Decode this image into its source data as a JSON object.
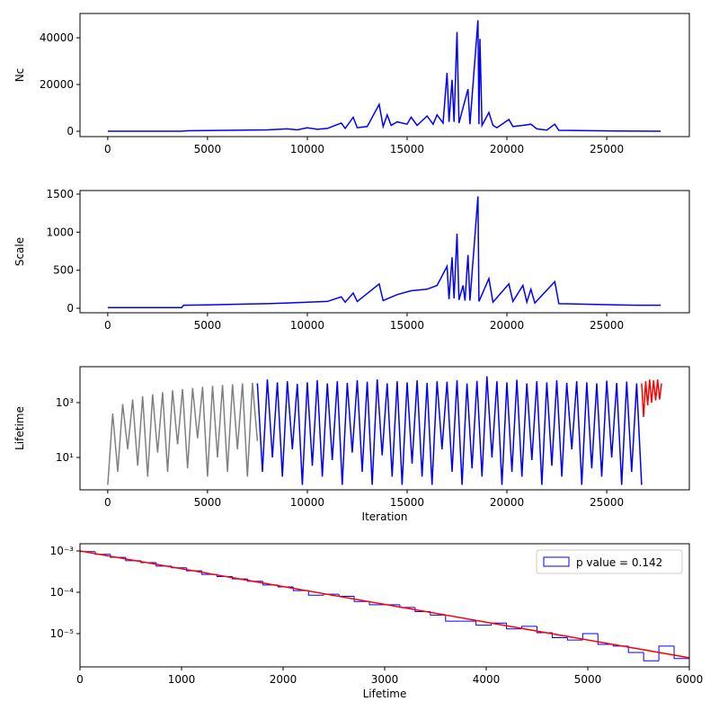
{
  "chart_data": [
    {
      "type": "line",
      "ylabel": "Nc",
      "xlim": [
        -1390,
        29140
      ],
      "ylim": [
        -2300,
        50400
      ],
      "xticks": [
        0,
        5000,
        10000,
        15000,
        20000,
        25000
      ],
      "yticks": [
        0,
        20000,
        40000
      ],
      "series": [
        {
          "color": "blue",
          "x": [
            0,
            1000,
            2000,
            3000,
            3700,
            4000,
            5000,
            6000,
            7000,
            8000,
            9000,
            9500,
            10000,
            10500,
            11000,
            11700,
            11900,
            12300,
            12500,
            13000,
            13600,
            13800,
            14000,
            14200,
            14500,
            15000,
            15200,
            15500,
            16000,
            16300,
            16500,
            16800,
            17000,
            17100,
            17250,
            17350,
            17500,
            17600,
            18050,
            18150,
            18550,
            18600,
            18650,
            18750,
            19100,
            19300,
            19500,
            20100,
            20300,
            20800,
            21200,
            21500,
            22000,
            22400,
            22600,
            23500,
            24500,
            25500,
            26500,
            27700
          ],
          "values": [
            0,
            0,
            0,
            0,
            0,
            200,
            300,
            400,
            500,
            600,
            1000,
            600,
            1500,
            800,
            1200,
            3500,
            1200,
            6000,
            1500,
            2000,
            11500,
            2000,
            7000,
            2500,
            4000,
            3000,
            6000,
            2500,
            6500,
            3000,
            7000,
            3500,
            25000,
            4000,
            22000,
            4000,
            42500,
            3500,
            18000,
            3000,
            47500,
            3000,
            39500,
            2500,
            8000,
            2500,
            1500,
            5000,
            2000,
            2500,
            3000,
            1000,
            500,
            3000,
            400,
            300,
            200,
            100,
            50,
            0
          ]
        }
      ]
    },
    {
      "type": "line",
      "ylabel": "Scale",
      "xlim": [
        -1390,
        29140
      ],
      "ylim": [
        -59,
        1547
      ],
      "xticks": [
        0,
        5000,
        10000,
        15000,
        20000,
        25000
      ],
      "yticks": [
        0,
        500,
        1000,
        1500
      ],
      "series": [
        {
          "color": "blue",
          "x": [
            0,
            1000,
            2000,
            3000,
            3700,
            3800,
            5000,
            6000,
            7000,
            8000,
            9000,
            10000,
            11000,
            11700,
            11900,
            12300,
            12500,
            13600,
            13800,
            14500,
            15200,
            16000,
            16500,
            17000,
            17100,
            17250,
            17350,
            17500,
            17600,
            17800,
            17900,
            18050,
            18150,
            18550,
            18600,
            19100,
            19300,
            20100,
            20300,
            20800,
            21000,
            21200,
            21400,
            22400,
            22600,
            23500,
            24500,
            25500,
            26500,
            27700
          ],
          "values": [
            10,
            10,
            10,
            10,
            10,
            40,
            45,
            50,
            55,
            60,
            70,
            80,
            90,
            150,
            80,
            200,
            90,
            320,
            100,
            180,
            230,
            250,
            300,
            550,
            120,
            670,
            130,
            980,
            110,
            300,
            100,
            700,
            100,
            1470,
            90,
            390,
            80,
            320,
            90,
            300,
            80,
            250,
            70,
            350,
            60,
            55,
            50,
            45,
            40,
            40
          ]
        }
      ]
    },
    {
      "type": "line",
      "yscale": "log",
      "ylabel": "Lifetime",
      "xlabel": "Iteration",
      "xlim": [
        -1390,
        29140
      ],
      "ylim": [
        0.66,
        20400
      ],
      "xticks": [
        0,
        5000,
        10000,
        15000,
        20000,
        25000
      ],
      "yticks": [
        {
          "value": 10,
          "label": "10¹"
        },
        {
          "value": 1000,
          "label": "10³"
        }
      ],
      "series": [
        {
          "color": "gray",
          "x": [
            0,
            250,
            500,
            750,
            1000,
            1250,
            1500,
            1750,
            2000,
            2250,
            2500,
            2750,
            3000,
            3250,
            3500,
            3750,
            4000,
            4250,
            4500,
            4750,
            5000,
            5250,
            5500,
            5750,
            6000,
            6250,
            6500,
            6750,
            7000,
            7250,
            7500
          ],
          "values": [
            1,
            400,
            3,
            900,
            20,
            1300,
            5,
            1700,
            2,
            2000,
            15,
            2400,
            3,
            2800,
            30,
            3100,
            4,
            3400,
            50,
            3800,
            2,
            4100,
            10,
            4400,
            3,
            4700,
            20,
            5000,
            2,
            5200,
            40
          ]
        },
        {
          "color": "blue",
          "x": [
            7500,
            7750,
            8000,
            8250,
            8500,
            8750,
            9000,
            9250,
            9500,
            9750,
            10000,
            10250,
            10500,
            10750,
            11000,
            11250,
            11500,
            11750,
            12000,
            12250,
            12500,
            12750,
            13000,
            13250,
            13500,
            13750,
            14000,
            14250,
            14500,
            14750,
            15000,
            15250,
            15500,
            15750,
            16000,
            16250,
            16500,
            16750,
            17000,
            17250,
            17500,
            17750,
            18000,
            18250,
            18500,
            18750,
            19000,
            19250,
            19500,
            19750,
            20000,
            20250,
            20500,
            20750,
            21000,
            21250,
            21500,
            21750,
            22000,
            22250,
            22500,
            22750,
            23000,
            23250,
            23500,
            23750,
            24000,
            24250,
            24500,
            24750,
            25000,
            25250,
            25500,
            25750,
            26000,
            26250,
            26500,
            26750
          ],
          "values": [
            5000,
            3,
            7000,
            10,
            5500,
            2,
            6000,
            20,
            4800,
            1,
            5500,
            5,
            6500,
            2,
            5000,
            8,
            6000,
            1,
            5200,
            15,
            6500,
            3,
            5800,
            1,
            7000,
            12,
            5000,
            2,
            6000,
            1,
            5500,
            6,
            6500,
            2,
            5200,
            1,
            6000,
            20,
            5800,
            3,
            6500,
            1,
            5000,
            4,
            6200,
            2,
            9000,
            10,
            6000,
            1,
            5500,
            3,
            6800,
            2,
            5000,
            8,
            6000,
            1,
            5500,
            5,
            6500,
            2,
            5200,
            20,
            6000,
            1,
            5500,
            4,
            5000,
            2,
            6300,
            10,
            5200,
            1,
            5800,
            3,
            5000,
            1
          ]
        },
        {
          "color": "red",
          "x": [
            26750,
            26850,
            26950,
            27050,
            27150,
            27250,
            27350,
            27450,
            27550,
            27650,
            27750
          ],
          "values": [
            5000,
            300,
            6000,
            800,
            7000,
            1000,
            6500,
            1200,
            7000,
            1300,
            5000
          ]
        }
      ]
    },
    {
      "type": "histogram",
      "yscale": "log",
      "xlabel": "Lifetime",
      "xlim": [
        0,
        6000
      ],
      "ylim": [
        1.57e-06,
        0.00149
      ],
      "xticks": [
        0,
        1000,
        2000,
        3000,
        4000,
        5000,
        6000
      ],
      "yticks": [
        {
          "value": 1e-05,
          "label": "10⁻⁵"
        },
        {
          "value": 0.0001,
          "label": "10⁻⁴"
        },
        {
          "value": 0.001,
          "label": "10⁻³"
        }
      ],
      "name": "p value = 0.142",
      "color": "blue",
      "legend": "upper right",
      "bins": [
        0,
        150,
        300,
        450,
        600,
        750,
        900,
        1050,
        1200,
        1350,
        1500,
        1650,
        1800,
        1950,
        2100,
        2250,
        2400,
        2550,
        2700,
        2850,
        3000,
        3150,
        3300,
        3450,
        3600,
        3750,
        3900,
        4050,
        4200,
        4350,
        4500,
        4650,
        4800,
        4950,
        5100,
        5250,
        5400,
        5550,
        5700,
        5850,
        6000
      ],
      "values": [
        0.00096,
        0.00083,
        0.0007,
        0.00058,
        0.00052,
        0.00043,
        0.00039,
        0.00033,
        0.00027,
        0.00024,
        0.00021,
        0.000185,
        0.00015,
        0.000135,
        0.00011,
        8.5e-05,
        9e-05,
        8e-05,
        6e-05,
        5e-05,
        5e-05,
        4.3e-05,
        3.4e-05,
        2.8e-05,
        2e-05,
        2e-05,
        1.6e-05,
        1.8e-05,
        1.3e-05,
        1.5e-05,
        1.05e-05,
        8e-06,
        7e-06,
        1e-05,
        5.5e-06,
        5e-06,
        3.5e-06,
        2.2e-06,
        5e-06,
        2.5e-06
      ],
      "fit": {
        "color": "red",
        "x": [
          0,
          6000
        ],
        "values": [
          0.001,
          2.6e-06
        ]
      }
    }
  ]
}
